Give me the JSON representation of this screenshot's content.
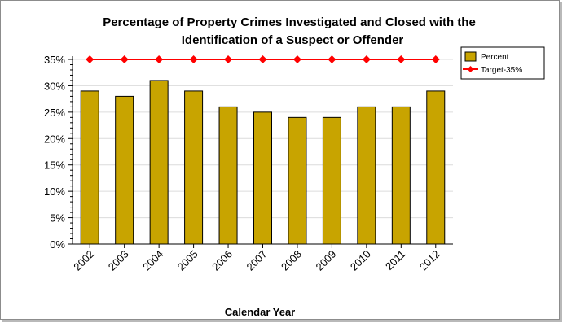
{
  "chart_data": {
    "type": "bar",
    "title_lines": [
      "Percentage of Property Crimes Investigated and Closed with the",
      "Identification of a Suspect or Offender"
    ],
    "xlabel": "Calendar Year",
    "ylabel": "",
    "categories": [
      "2002",
      "2003",
      "2004",
      "2005",
      "2006",
      "2007",
      "2008",
      "2009",
      "2010",
      "2011",
      "2012"
    ],
    "series": [
      {
        "name": "Percent",
        "type": "bar",
        "color": "#c8a400",
        "values": [
          29,
          28,
          31,
          29,
          26,
          25,
          24,
          24,
          26,
          26,
          29
        ]
      },
      {
        "name": "Target-35%",
        "type": "line",
        "color": "#ff0000",
        "values": [
          35,
          35,
          35,
          35,
          35,
          35,
          35,
          35,
          35,
          35,
          35
        ]
      }
    ],
    "ylim": [
      0,
      35
    ],
    "yticks": [
      "0%",
      "5%",
      "10%",
      "15%",
      "20%",
      "25%",
      "30%",
      "35%"
    ],
    "grid": true,
    "legend_position": "top-right"
  }
}
